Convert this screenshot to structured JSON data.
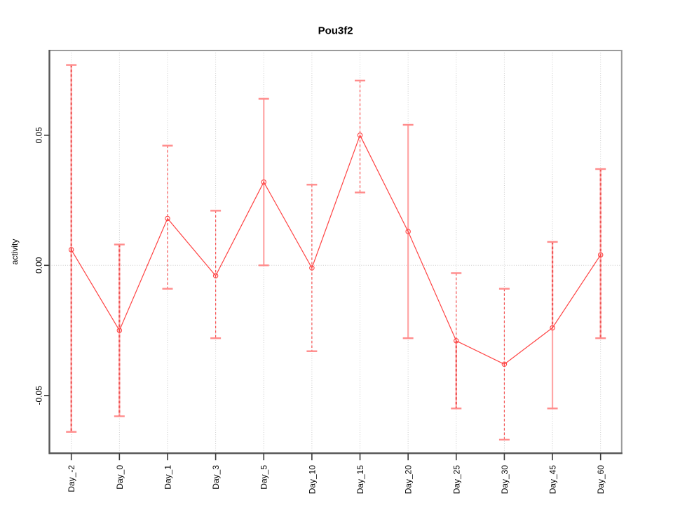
{
  "chart_data": {
    "type": "line",
    "title": "Pou3f2",
    "xlabel": "",
    "ylabel": "activity",
    "categories": [
      "Day_-2",
      "Day_0",
      "Day_1",
      "Day_3",
      "Day_5",
      "Day_10",
      "Day_15",
      "Day_20",
      "Day_25",
      "Day_30",
      "Day_45",
      "Day_60"
    ],
    "series": [
      {
        "name": "activity",
        "values": [
          0.006,
          -0.025,
          0.018,
          -0.004,
          0.032,
          -0.001,
          0.05,
          0.013,
          -0.029,
          -0.038,
          -0.024,
          0.004
        ],
        "upper": [
          0.077,
          0.008,
          0.046,
          0.021,
          0.064,
          0.031,
          0.071,
          0.054,
          -0.003,
          -0.009,
          0.009,
          0.037
        ],
        "lower": [
          -0.064,
          -0.058,
          -0.009,
          -0.028,
          0.0,
          -0.033,
          0.028,
          -0.028,
          -0.055,
          -0.067,
          -0.055,
          -0.028
        ]
      }
    ],
    "error_bar_upper_style": [
      "overlay",
      "overlay",
      "dash",
      "dash",
      "salmon",
      "dash",
      "dash",
      "salmon",
      "dash",
      "dash",
      "overlay",
      "overlay"
    ],
    "error_bar_lower_style": [
      "overlay",
      "overlay",
      "dash",
      "dash",
      "salmon",
      "dash",
      "dash",
      "salmon",
      "overlay",
      "dash",
      "salmon",
      "overlay"
    ],
    "yticks": [
      -0.05,
      0.0,
      0.05
    ],
    "ytick_labels": [
      "-0.05",
      "0.00",
      "0.05"
    ],
    "ylim": [
      -0.072,
      0.083
    ],
    "grid": {
      "vertical_per_category": true,
      "zero_line": true,
      "style": "dotted"
    },
    "legend": null,
    "marker": "open-circle",
    "colors": {
      "line": "#ff4343",
      "bar_dash": "#f65252",
      "bar_dash_overlay": "#ee5454",
      "bar_salmon": "#ffa6a6",
      "cap": "#ff8c8c",
      "grid": "#cbcbcb",
      "box": "#9b9b9b",
      "axis": "#575757",
      "tick": "#3a3a3a",
      "text": "#000000"
    }
  }
}
